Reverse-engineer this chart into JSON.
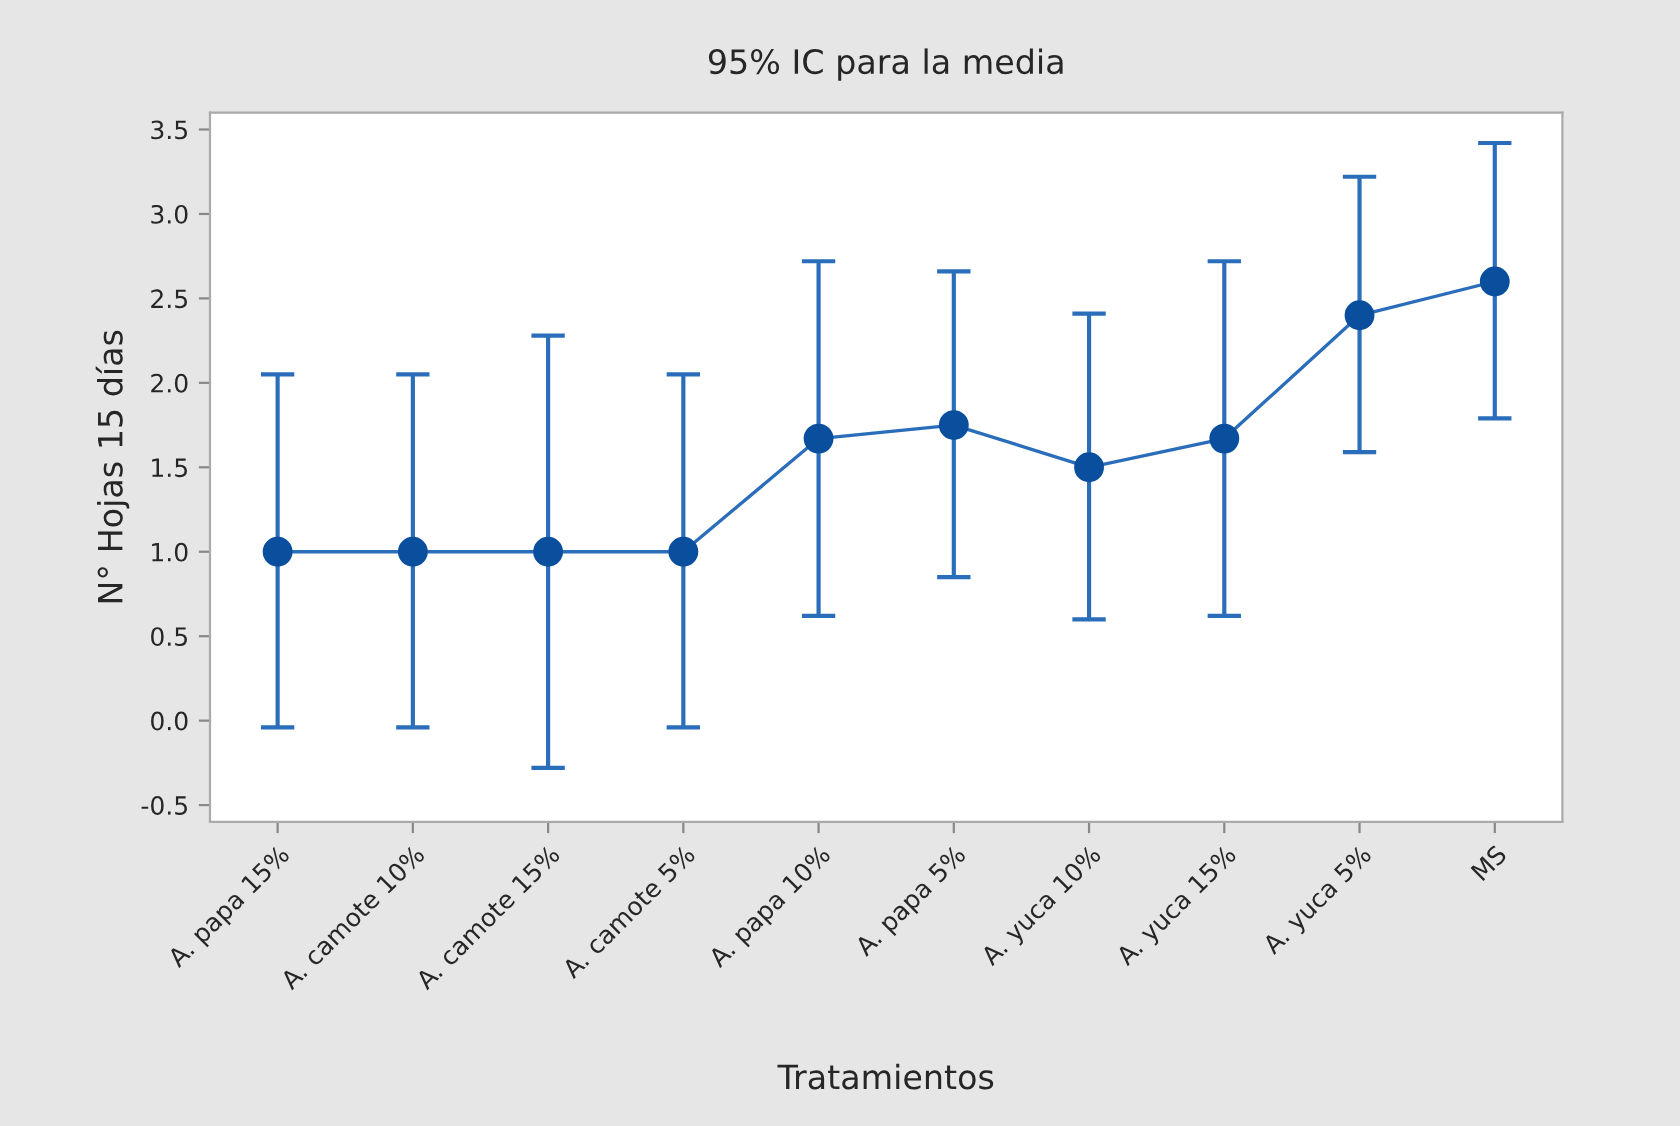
{
  "chart_data": {
    "type": "line",
    "title": "95% IC para la media",
    "xlabel": "Tratamientos",
    "ylabel": "N° Hojas 15 días",
    "categories": [
      "A. papa 15%",
      "A. camote 10%",
      "A. camote 15%",
      "A. camote 5%",
      "A. papa 10%",
      "A. papa 5%",
      "A. yuca 10%",
      "A. yuca 15%",
      "A. yuca 5%",
      "MS"
    ],
    "series": [
      {
        "color": "#2a6ebb",
        "values": [
          1.0,
          1.0,
          1.0,
          1.0,
          1.67,
          1.75,
          1.5,
          1.67,
          2.4,
          2.6
        ],
        "errors": [
          [
            -0.04,
            2.05
          ],
          [
            -0.04,
            2.05
          ],
          [
            -0.28,
            2.28
          ],
          [
            -0.04,
            2.05
          ],
          [
            0.62,
            2.72
          ],
          [
            0.85,
            2.66
          ],
          [
            0.6,
            2.41
          ],
          [
            0.62,
            2.72
          ],
          [
            1.59,
            3.22
          ],
          [
            1.79,
            3.42
          ]
        ]
      }
    ],
    "ylim": [
      -0.6,
      3.6
    ],
    "yticks": [
      -0.5,
      {
        "value": 0,
        "label": "0.0"
      },
      0.5,
      {
        "value": 1,
        "label": "1.0"
      },
      1.5,
      {
        "value": 2,
        "label": "2.0"
      },
      2.5,
      {
        "value": 3,
        "label": "3.0"
      },
      3.5
    ],
    "marker": "circle",
    "line_style": "solid",
    "grid": false,
    "legend": false
  }
}
